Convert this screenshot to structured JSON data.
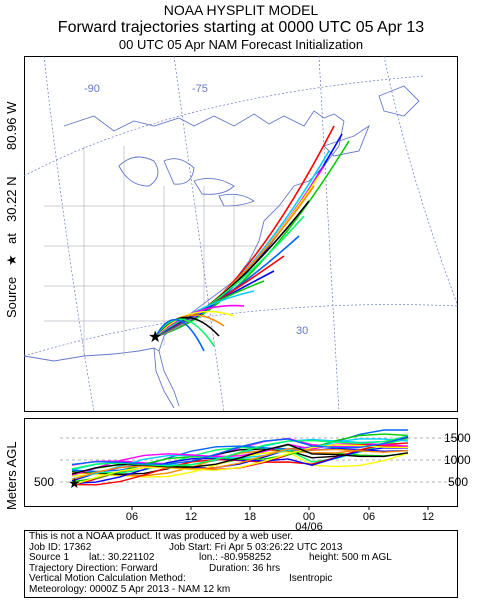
{
  "header": {
    "line1": "NOAA HYSPLIT MODEL",
    "line2": "Forward trajectories starting at 0000 UTC 05 Apr 13",
    "line3": "00 UTC 05 Apr     NAM  Forecast Initialization"
  },
  "side": {
    "source_label": "Source",
    "star_glyph": "★",
    "at_label": "at",
    "lat": "30.22 N",
    "lon": "80.96 W",
    "meters_label": "Meters AGL"
  },
  "map": {
    "lon_labels": [
      "-90",
      "-75"
    ],
    "lat_label": "30"
  },
  "profile": {
    "height_labels": [
      "1500",
      "1000",
      "500"
    ],
    "start_height": "500",
    "time_labels": [
      "06",
      "12",
      "18",
      "00",
      "06",
      "12"
    ],
    "date_label": "04/06"
  },
  "info": {
    "disclaimer": "This is not a NOAA product. It was produced by a web user.",
    "job_id": "Job ID: 17362",
    "job_start": "Job Start: Fri Apr  5 03:26:22 UTC 2013",
    "source": "Source 1",
    "lat": "lat.: 30.221102",
    "lon": "lon.: -80.958252",
    "height": "height: 500 m AGL",
    "direction": "Trajectory Direction: Forward",
    "duration": "Duration: 36 hrs",
    "vmethod_label": "Vertical Motion Calculation Method:",
    "vmethod": "Isentropic",
    "meteorology": "Meteorology: 0000Z  5 Apr 2013 - NAM 12 km"
  },
  "colors": [
    "#ff0000",
    "#0000ff",
    "#00cc00",
    "#00ccff",
    "#ff00ff",
    "#ffff00",
    "#ff8800",
    "#000000",
    "#00ff66",
    "#0066ff"
  ]
}
